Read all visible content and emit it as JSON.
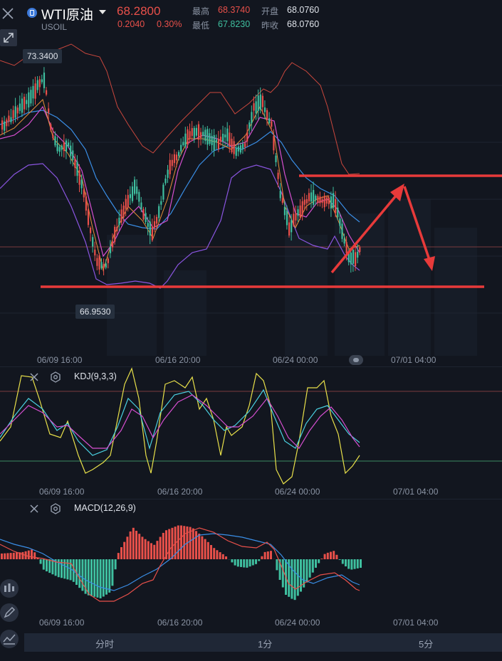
{
  "header": {
    "symbol_name": "WTI原油",
    "symbol_code": "USOIL",
    "last_price": "68.2800",
    "change": "0.2040",
    "change_pct": "0.30%",
    "high_label": "最高",
    "high_value": "68.3740",
    "low_label": "最低",
    "low_value": "67.8230",
    "open_label": "开盘",
    "open_value": "68.0760",
    "prev_close_label": "昨收",
    "prev_close_value": "68.0760",
    "colors": {
      "up": "#e8504a",
      "down": "#3fbf9f"
    }
  },
  "main_chart": {
    "high_marker": "73.3400",
    "low_marker": "66.9530",
    "time_labels": [
      "06/09 16:00",
      "06/16 20:00",
      "06/24 00:00",
      "07/01 04:00"
    ]
  },
  "kdj_panel": {
    "title": "KDJ(9,3,3)",
    "time_labels": [
      "06/09 16:00",
      "06/16 20:00",
      "06/24 00:00",
      "07/01 04:00"
    ]
  },
  "macd_panel": {
    "title": "MACD(12,26,9)",
    "time_labels": [
      "06/09 16:00",
      "06/16 20:00",
      "06/24 00:00",
      "07/01 04:00"
    ]
  },
  "bottom_tabs": [
    "分时",
    "1分",
    "5分"
  ],
  "icons": [
    "close-icon",
    "expand-icon",
    "settings-gear-icon",
    "candle-type-icon",
    "draw-pen-icon",
    "indicator-icon",
    "dropdown-caret-icon",
    "symbol-badge-icon"
  ]
}
